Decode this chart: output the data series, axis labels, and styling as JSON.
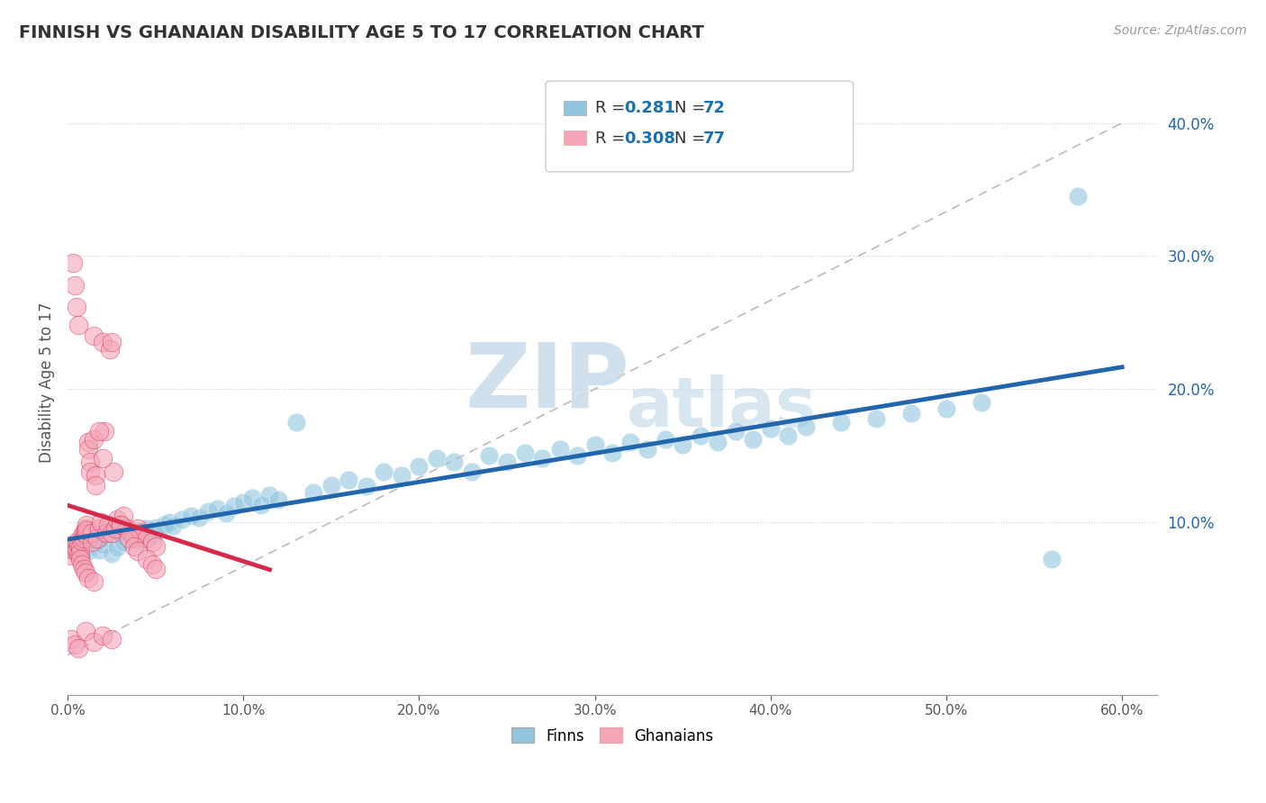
{
  "title": "FINNISH VS GHANAIAN DISABILITY AGE 5 TO 17 CORRELATION CHART",
  "source": "Source: ZipAtlas.com",
  "ylabel": "Disability Age 5 to 17",
  "xlim": [
    0.0,
    0.62
  ],
  "ylim": [
    -0.03,
    0.44
  ],
  "xticks": [
    0.0,
    0.1,
    0.2,
    0.3,
    0.4,
    0.5,
    0.6
  ],
  "yticks_right": [
    0.0,
    0.1,
    0.2,
    0.3,
    0.4
  ],
  "finns_R": 0.281,
  "finns_N": 72,
  "ghanaians_R": 0.308,
  "ghanaians_N": 77,
  "blue_color": "#92c5de",
  "blue_line_color": "#2166ac",
  "pink_color": "#f4a5b8",
  "pink_line_color": "#d6294b",
  "legend_R_color": "#1a6faf",
  "watermark_color": "#dce8f0",
  "background_color": "#ffffff",
  "grid_color": "#cccccc",
  "title_color": "#333333",
  "finns_x": [
    0.005,
    0.008,
    0.01,
    0.012,
    0.015,
    0.018,
    0.02,
    0.022,
    0.025,
    0.028,
    0.03,
    0.032,
    0.035,
    0.038,
    0.04,
    0.042,
    0.045,
    0.048,
    0.05,
    0.052,
    0.055,
    0.058,
    0.06,
    0.065,
    0.07,
    0.075,
    0.08,
    0.085,
    0.09,
    0.095,
    0.1,
    0.105,
    0.11,
    0.115,
    0.12,
    0.13,
    0.14,
    0.15,
    0.16,
    0.17,
    0.18,
    0.19,
    0.2,
    0.21,
    0.22,
    0.23,
    0.24,
    0.25,
    0.26,
    0.27,
    0.28,
    0.29,
    0.3,
    0.31,
    0.32,
    0.33,
    0.34,
    0.35,
    0.36,
    0.37,
    0.38,
    0.39,
    0.4,
    0.41,
    0.42,
    0.44,
    0.46,
    0.48,
    0.5,
    0.52,
    0.56,
    0.575
  ],
  "finns_y": [
    0.08,
    0.075,
    0.082,
    0.078,
    0.085,
    0.079,
    0.083,
    0.088,
    0.076,
    0.081,
    0.09,
    0.085,
    0.092,
    0.088,
    0.093,
    0.087,
    0.095,
    0.091,
    0.096,
    0.094,
    0.098,
    0.1,
    0.097,
    0.102,
    0.105,
    0.103,
    0.108,
    0.11,
    0.107,
    0.112,
    0.115,
    0.118,
    0.113,
    0.12,
    0.117,
    0.175,
    0.122,
    0.128,
    0.132,
    0.127,
    0.138,
    0.135,
    0.142,
    0.148,
    0.145,
    0.138,
    0.15,
    0.145,
    0.152,
    0.148,
    0.155,
    0.15,
    0.158,
    0.152,
    0.16,
    0.155,
    0.162,
    0.158,
    0.165,
    0.16,
    0.168,
    0.162,
    0.17,
    0.165,
    0.172,
    0.175,
    0.178,
    0.182,
    0.185,
    0.19,
    0.072,
    0.345
  ],
  "ghanaians_x": [
    0.001,
    0.002,
    0.003,
    0.004,
    0.005,
    0.005,
    0.006,
    0.006,
    0.007,
    0.007,
    0.008,
    0.008,
    0.009,
    0.009,
    0.01,
    0.01,
    0.011,
    0.011,
    0.012,
    0.012,
    0.013,
    0.013,
    0.014,
    0.014,
    0.015,
    0.015,
    0.016,
    0.016,
    0.017,
    0.018,
    0.019,
    0.02,
    0.021,
    0.022,
    0.023,
    0.024,
    0.025,
    0.026,
    0.027,
    0.028,
    0.03,
    0.032,
    0.034,
    0.036,
    0.038,
    0.04,
    0.042,
    0.045,
    0.048,
    0.05,
    0.003,
    0.004,
    0.005,
    0.006,
    0.007,
    0.008,
    0.009,
    0.01,
    0.012,
    0.015,
    0.018,
    0.02,
    0.025,
    0.03,
    0.035,
    0.038,
    0.04,
    0.045,
    0.048,
    0.05,
    0.002,
    0.004,
    0.006,
    0.01,
    0.015,
    0.02,
    0.025
  ],
  "ghanaians_y": [
    0.08,
    0.075,
    0.082,
    0.078,
    0.085,
    0.079,
    0.083,
    0.076,
    0.081,
    0.077,
    0.09,
    0.086,
    0.092,
    0.088,
    0.095,
    0.091,
    0.098,
    0.094,
    0.16,
    0.155,
    0.145,
    0.138,
    0.085,
    0.092,
    0.162,
    0.24,
    0.135,
    0.128,
    0.088,
    0.095,
    0.1,
    0.235,
    0.168,
    0.092,
    0.098,
    0.23,
    0.092,
    0.138,
    0.095,
    0.102,
    0.098,
    0.105,
    0.095,
    0.092,
    0.088,
    0.095,
    0.092,
    0.088,
    0.085,
    0.082,
    0.295,
    0.278,
    0.262,
    0.248,
    0.072,
    0.068,
    0.065,
    0.062,
    0.058,
    0.055,
    0.168,
    0.148,
    0.235,
    0.098,
    0.088,
    0.082,
    0.078,
    0.072,
    0.068,
    0.065,
    0.012,
    0.008,
    0.005,
    0.018,
    0.01,
    0.015,
    0.012
  ]
}
